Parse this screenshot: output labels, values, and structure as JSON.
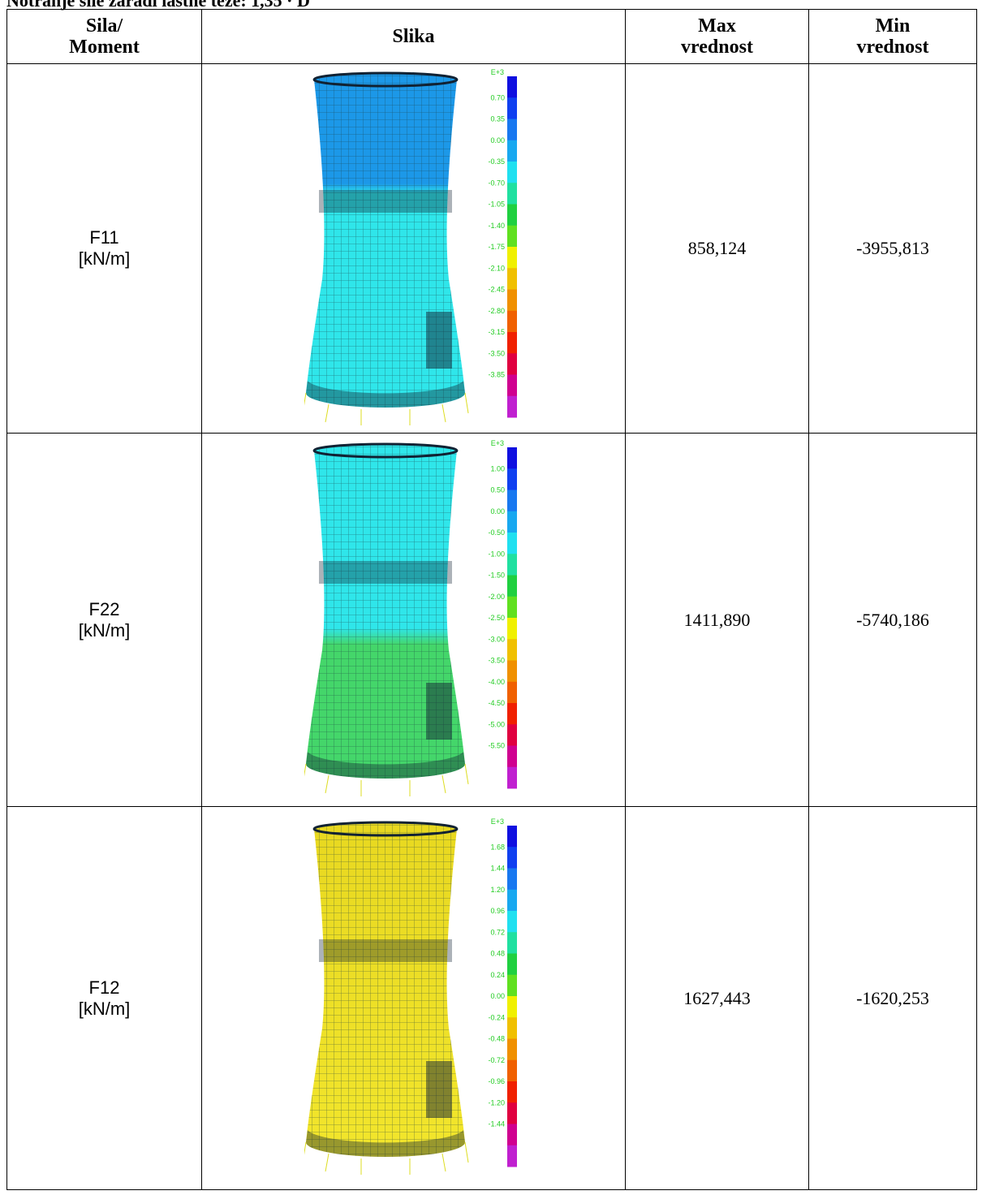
{
  "header": {
    "title": "Notranje sile zaradi lastne teže: 1,35 · D"
  },
  "table": {
    "columns": [
      [
        "Sila/",
        "Moment"
      ],
      [
        "Slika"
      ],
      [
        "Max",
        "vrednost"
      ],
      [
        "Min",
        "vrednost"
      ]
    ],
    "rows": [
      {
        "label": [
          "F11",
          "[kN/m]"
        ],
        "image": {
          "unit": "E+3",
          "scale": [
            "0.70",
            "0.35",
            "0.00",
            "-0.35",
            "-0.70",
            "-1.05",
            "-1.40",
            "-1.75",
            "-2.10",
            "-2.45",
            "-2.80",
            "-3.15",
            "-3.50",
            "-3.85"
          ]
        },
        "max": "858,124",
        "min": "-3955,813"
      },
      {
        "label": [
          "F22",
          "[kN/m]"
        ],
        "image": {
          "unit": "E+3",
          "scale": [
            "1.00",
            "0.50",
            "0.00",
            "-0.50",
            "-1.00",
            "-1.50",
            "-2.00",
            "-2.50",
            "-3.00",
            "-3.50",
            "-4.00",
            "-4.50",
            "-5.00",
            "-5.50"
          ]
        },
        "max": "1411,890",
        "min": "-5740,186"
      },
      {
        "label": [
          "F12",
          "[kN/m]"
        ],
        "image": {
          "unit": "E+3",
          "scale": [
            "1.68",
            "1.44",
            "1.20",
            "0.96",
            "0.72",
            "0.48",
            "0.24",
            "0.00",
            "-0.24",
            "-0.48",
            "-0.72",
            "-0.96",
            "-1.20",
            "-1.44"
          ]
        },
        "max": "1627,443",
        "min": "-1620,253"
      }
    ]
  }
}
